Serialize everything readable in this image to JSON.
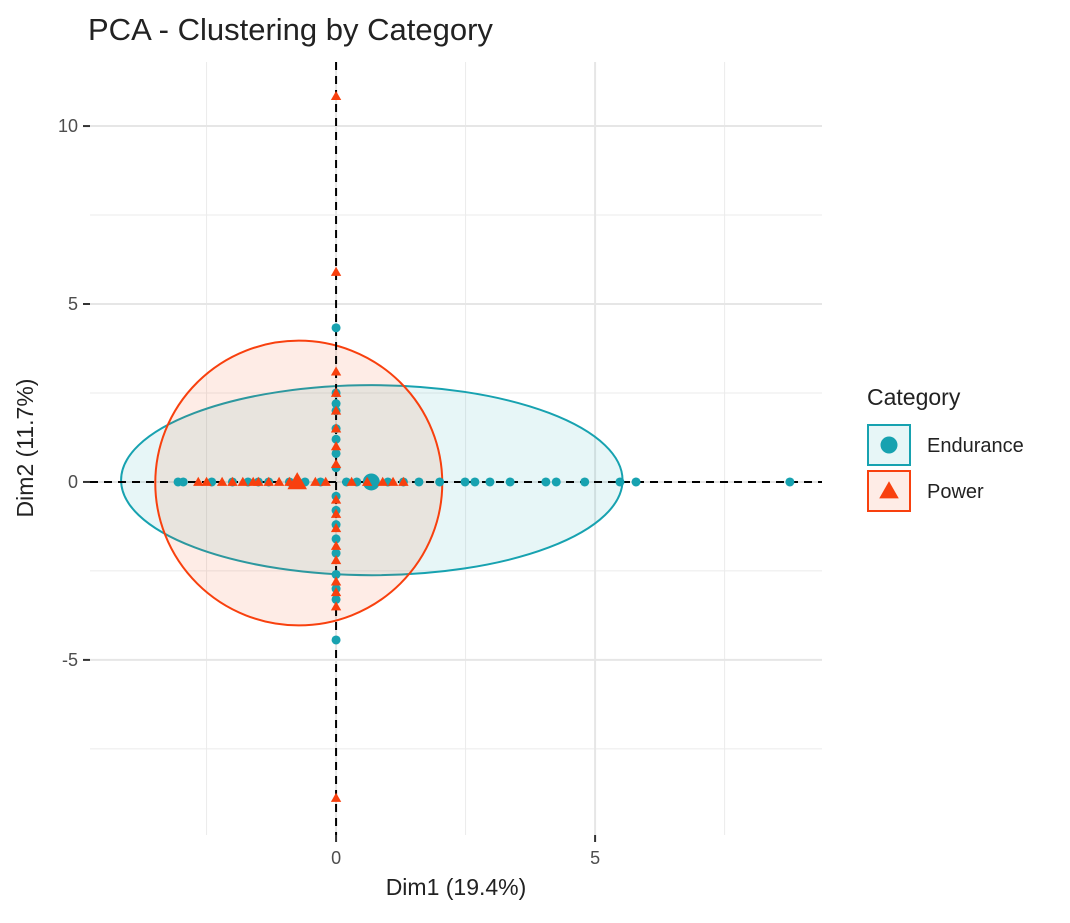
{
  "chart_data": {
    "type": "scatter",
    "title": "PCA - Clustering by Category",
    "x_label": "Dim1 (19.4%)",
    "y_label": "Dim2 (11.7%)",
    "legend_title": "Category",
    "legend_position": "right",
    "xlim": [
      -4.75,
      9.38
    ],
    "xticks": [
      0,
      5
    ],
    "ylim": [
      -9.92,
      11.8
    ],
    "yticks": [
      -5,
      0,
      5,
      10
    ],
    "grid": true,
    "series": [
      {
        "name": "Endurance",
        "color": "#17a2b0",
        "marker": "circle",
        "x": [
          -3.05,
          -2.95,
          -2.4,
          -2.0,
          -1.7,
          -1.5,
          -1.3,
          -0.9,
          -0.6,
          -0.3,
          0.2,
          0.4,
          1.0,
          1.3,
          1.6,
          2.0,
          2.49,
          2.68,
          2.97,
          3.36,
          4.05,
          4.25,
          4.8,
          5.48,
          5.79,
          8.76,
          0,
          0,
          0,
          0,
          0,
          0,
          0,
          0,
          0,
          0,
          0,
          0,
          0,
          0,
          0,
          0,
          0
        ],
        "y": [
          0,
          0,
          0,
          0,
          0,
          0,
          0,
          0,
          0,
          0,
          0,
          0,
          0,
          0,
          0,
          0,
          0,
          0,
          0,
          0,
          0,
          0,
          0,
          0,
          0,
          0,
          4.33,
          2.5,
          2.2,
          2.0,
          1.5,
          1.2,
          0.8,
          0.4,
          -0.4,
          -0.8,
          -1.2,
          -1.6,
          -2.0,
          -2.6,
          -3.0,
          -3.3,
          -4.44
        ],
        "centroid": {
          "x": 0.68,
          "y": 0
        },
        "ellipse": {
          "cx": 0.69,
          "cy": 0.05,
          "rx": 4.84,
          "ry": 2.67
        }
      },
      {
        "name": "Power",
        "color": "#f8400e",
        "marker": "triangle",
        "x": [
          -2.66,
          -2.5,
          -2.2,
          -2.0,
          -1.8,
          -1.6,
          -1.5,
          -1.3,
          -1.1,
          -0.9,
          -0.4,
          -0.2,
          0.3,
          0.6,
          0.9,
          1.1,
          1.3,
          0,
          0,
          0,
          0,
          0,
          0,
          0,
          0,
          0,
          0,
          0,
          0,
          0,
          0,
          0,
          0,
          0
        ],
        "y": [
          0,
          0,
          0,
          0,
          0,
          0,
          0,
          0,
          0,
          0,
          0,
          0,
          0,
          0,
          0,
          0,
          0,
          10.84,
          5.9,
          3.1,
          2.5,
          2.0,
          1.5,
          1.0,
          0.5,
          -0.5,
          -0.9,
          -1.3,
          -1.8,
          -2.2,
          -2.8,
          -3.1,
          -3.5,
          -8.88
        ],
        "centroid": {
          "x": -0.75,
          "y": 0
        },
        "ellipse": {
          "cx": -0.72,
          "cy": -0.03,
          "rx": 2.77,
          "ry": 4.0
        }
      }
    ]
  }
}
